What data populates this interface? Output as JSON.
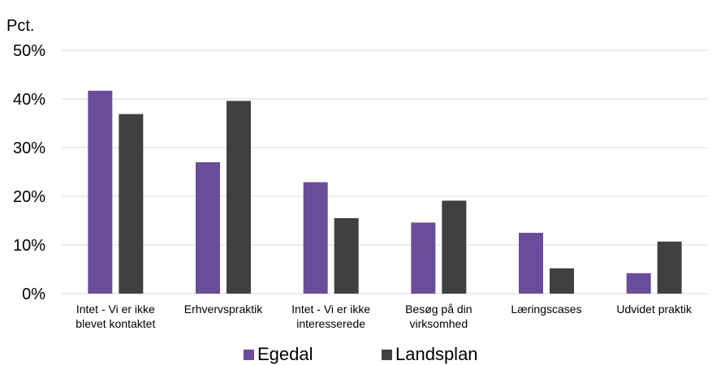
{
  "chart_data": {
    "type": "bar",
    "unit_label": "Pct.",
    "categories": [
      [
        "Intet - Vi er ikke",
        "blevet kontaktet"
      ],
      [
        "Erhvervspraktik"
      ],
      [
        "Intet - Vi er ikke",
        "interesserede"
      ],
      [
        "Besøg på din",
        "virksomhed"
      ],
      [
        "Læringscases"
      ],
      [
        "Udvidet praktik"
      ]
    ],
    "series": [
      {
        "name": "Egedal",
        "color": "#6b4c9a",
        "values": [
          41.7,
          27.0,
          22.9,
          14.6,
          12.5,
          4.2
        ]
      },
      {
        "name": "Landsplan",
        "color": "#404040",
        "values": [
          36.9,
          39.6,
          15.5,
          19.1,
          5.2,
          10.7
        ]
      }
    ],
    "ylim": [
      0,
      50
    ],
    "yticks": [
      "0%",
      "10%",
      "20%",
      "30%",
      "40%",
      "50%"
    ],
    "grid": true,
    "gridline_color": "#d9d9d9",
    "legend_position": "bottom"
  }
}
